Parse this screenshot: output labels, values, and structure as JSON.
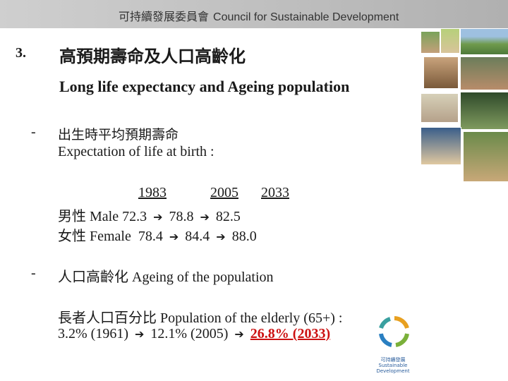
{
  "banner": {
    "title_zh": "可持續發展委員會",
    "title_en": "Council for Sustainable Development"
  },
  "heading": {
    "number": "3.",
    "title_zh": "高預期壽命及人口高齡化",
    "title_en": "Long life expectancy and Ageing population"
  },
  "section1": {
    "bullet": "-",
    "title_zh": "出生時平均預期壽命",
    "title_en": "Expectation of life at birth :",
    "years": [
      "1983",
      "2005",
      "2033"
    ],
    "male_label": "男性 Male",
    "male_values": [
      "72.3",
      "78.8",
      "82.5"
    ],
    "female_label": "女性 Female",
    "female_values": [
      "78.4",
      "84.4",
      "88.0"
    ]
  },
  "section2": {
    "bullet": "-",
    "title": "人口高齡化 Ageing of the population",
    "sub_label": "長者人口百分比   Population of the elderly (65+) :",
    "values": [
      "3.2% (1961)",
      "12.1% (2005)",
      "26.8% (2033)"
    ]
  },
  "arrow_glyph": "➔",
  "colors": {
    "highlight": "#cc1111",
    "banner": "#bdbdbd"
  },
  "logo": {
    "text_zh": "可持續發展",
    "text_en": "Sustainable Development"
  }
}
